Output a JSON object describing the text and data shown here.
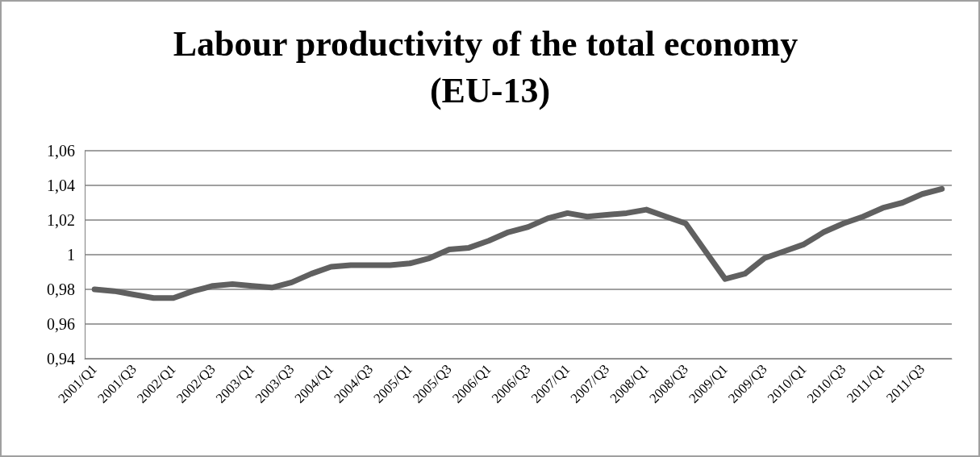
{
  "chart_data": {
    "type": "line",
    "title": "Labour productivity of the total economy (EU-13)",
    "categories": [
      "2001/Q1",
      null,
      "2001/Q3",
      null,
      "2002/Q1",
      null,
      "2002/Q3",
      null,
      "2003/Q1",
      null,
      "2003/Q3",
      null,
      "2004/Q1",
      null,
      "2004/Q3",
      null,
      "2005/Q1",
      null,
      "2005/Q3",
      null,
      "2006/Q1",
      null,
      "2006/Q3",
      null,
      "2007/Q1",
      null,
      "2007/Q3",
      null,
      "2008/Q1",
      null,
      "2008/Q3",
      null,
      "2009/Q1",
      null,
      "2009/Q3",
      null,
      "2010/Q1",
      null,
      "2010/Q3",
      null,
      "2011/Q1",
      null,
      "2011/Q3",
      null
    ],
    "series": [
      {
        "color": "#606060",
        "values": [
          0.98,
          0.979,
          0.977,
          0.975,
          0.975,
          0.979,
          0.982,
          0.983,
          0.982,
          0.981,
          0.984,
          0.989,
          0.993,
          0.994,
          0.994,
          0.994,
          0.995,
          0.998,
          1.003,
          1.004,
          1.008,
          1.013,
          1.016,
          1.021,
          1.024,
          1.022,
          1.023,
          1.024,
          1.026,
          1.022,
          1.018,
          1.002,
          0.986,
          0.989,
          0.998,
          1.002,
          1.006,
          1.013,
          1.018,
          1.022,
          1.027,
          1.03,
          1.035,
          1.038
        ]
      }
    ],
    "ylim": [
      0.94,
      1.06
    ],
    "yticks": [
      {
        "value": 0.94,
        "label": "0,94"
      },
      {
        "value": 0.96,
        "label": "0,96"
      },
      {
        "value": 0.98,
        "label": "0,98"
      },
      1,
      {
        "value": 1.02,
        "label": "1,02"
      },
      {
        "value": 1.04,
        "label": "1,04"
      },
      {
        "value": 1.06,
        "label": "1,06"
      }
    ],
    "grid": "y",
    "marker": "none",
    "line_style": "solid"
  }
}
